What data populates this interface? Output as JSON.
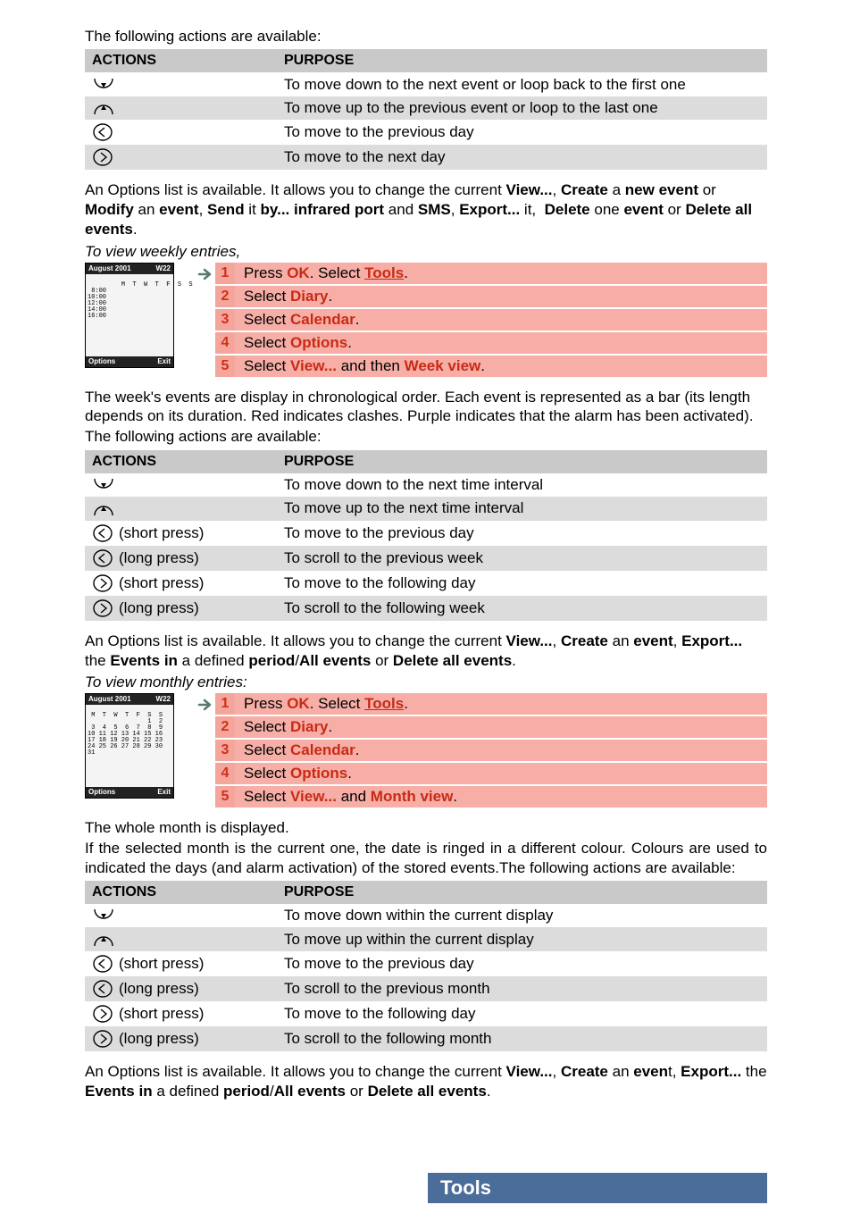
{
  "intro1": "The following actions are available:",
  "table_headers": {
    "actions": "ACTIONS",
    "purpose": "PURPOSE"
  },
  "icons": {
    "down": "down-arc",
    "up": "up-arc",
    "left": "left-circle",
    "right": "right-circle"
  },
  "table1_rows": [
    {
      "icon": "down",
      "press": "",
      "purpose": "To move down to the next event or loop back to the first one"
    },
    {
      "icon": "up",
      "press": "",
      "purpose": "To move up to the previous event or loop to the last one"
    },
    {
      "icon": "left",
      "press": "",
      "purpose": "To move to the previous day"
    },
    {
      "icon": "right",
      "press": "",
      "purpose": "To move to the next day"
    }
  ],
  "options1_html": "An Options list is available. It allows you to change the current <b>View...</b>, <b>Create</b> a <b>new event</b> or <b>Modify</b> an <b>event</b>, <b>Send</b> it <b>by... infrared port</b> and <b>SMS</b>, <b>Export...</b> it,&nbsp; <b>Delete</b> one <b>event</b> or <b>Delete all events</b>.",
  "weekly_heading": "To view weekly entries,",
  "phone1": {
    "title": "August 2001",
    "week": "W22",
    "opt": "Options",
    "exit": "Exit",
    "body": "         M  T  W  T  F  S  S\n 8:00\n10:00\n12:00\n14:00\n16:00"
  },
  "steps1": [
    {
      "html": "Press <span class='hot'>OK</span>. Select <span class='hotu'>Tools</span>."
    },
    {
      "html": "Select <span class='hot'>Diary</span>."
    },
    {
      "html": "Select <span class='hot'>Calendar</span>."
    },
    {
      "html": "Select <span class='hot'>Options</span>."
    },
    {
      "html": "Select <span class='hot'>View...</span> and then <span class='hot'>Week view</span>."
    }
  ],
  "week_explain": "The week's events are display in chronological order. Each event is represented as a bar (its length depends on its duration. Red indicates clashes. Purple indicates that the alarm has been activated).",
  "intro2": "The following actions are available:",
  "table2_rows": [
    {
      "icon": "down",
      "press": "",
      "purpose": "To move down to the next time interval"
    },
    {
      "icon": "up",
      "press": "",
      "purpose": "To move up to the next time interval"
    },
    {
      "icon": "left",
      "press": "(short press)",
      "purpose": "To move to the previous day"
    },
    {
      "icon": "left",
      "press": "(long press)",
      "purpose": "To scroll to the previous week"
    },
    {
      "icon": "right",
      "press": "(short press)",
      "purpose": "To move to the following day"
    },
    {
      "icon": "right",
      "press": "(long press)",
      "purpose": "To scroll to the following week"
    }
  ],
  "options2_html": "An Options list is available. It allows you to change the current <b>View...</b>, <b>Create</b> an <b>event</b>, <b>Export...</b> the <b>Events in</b> a defined <b>period</b>/<b>All events</b> or <b>Delete all events</b>.",
  "monthly_heading": "To view monthly entries:",
  "phone2": {
    "title": "August 2001",
    "week": "W22",
    "opt": "Options",
    "exit": "Exit",
    "body": " M  T  W  T  F  S  S\n                1  2\n 3  4  5  6  7  8  9\n10 11 12 13 14 15 16\n17 18 19 20 21 22 23\n24 25 26 27 28 29 30\n31"
  },
  "steps2": [
    {
      "html": "Press <span class='hot'>OK</span>. Select <span class='hotu'>Tools</span>."
    },
    {
      "html": "Select <span class='hot'>Diary</span>."
    },
    {
      "html": "Select <span class='hot'>Calendar</span>."
    },
    {
      "html": "Select <span class='hot'>Options</span>."
    },
    {
      "html": "Select <span class='hot'>View...</span> and <span class='hot'>Month view</span>."
    }
  ],
  "month_explain1": "The whole month is displayed.",
  "month_explain2": "If the selected month is the current one, the date is ringed in a different colour. Colours are used to indicated the days (and alarm activation) of the stored events.The following actions are available:",
  "table3_rows": [
    {
      "icon": "down",
      "press": "",
      "purpose": "To move down within the current display"
    },
    {
      "icon": "up",
      "press": "",
      "purpose": "To move up within the current display"
    },
    {
      "icon": "left",
      "press": "(short press)",
      "purpose": "To move to the previous day"
    },
    {
      "icon": "left",
      "press": "(long press)",
      "purpose": "To scroll to the previous month"
    },
    {
      "icon": "right",
      "press": "(short press)",
      "purpose": "To move to the following day"
    },
    {
      "icon": "right",
      "press": "(long press)",
      "purpose": "To scroll to the following month"
    }
  ],
  "options3_html": "An Options list is available. It allows you to change the current <b>View...</b>, <b>Create</b> an <b>even</b>t, <b>Export...</b> the <b>Events in</b> a defined <b>period</b>/<b>All events</b> or <b>Delete all events</b>.",
  "tools_label": "Tools",
  "colors": {
    "header_gray": "#c9c9c9",
    "row_gray": "#dcdcdc",
    "step_bg": "#f6aea6",
    "step_num_bg": "#f4a69d",
    "hot_red": "#c92a15",
    "banner_blue": "#4b6d99"
  }
}
